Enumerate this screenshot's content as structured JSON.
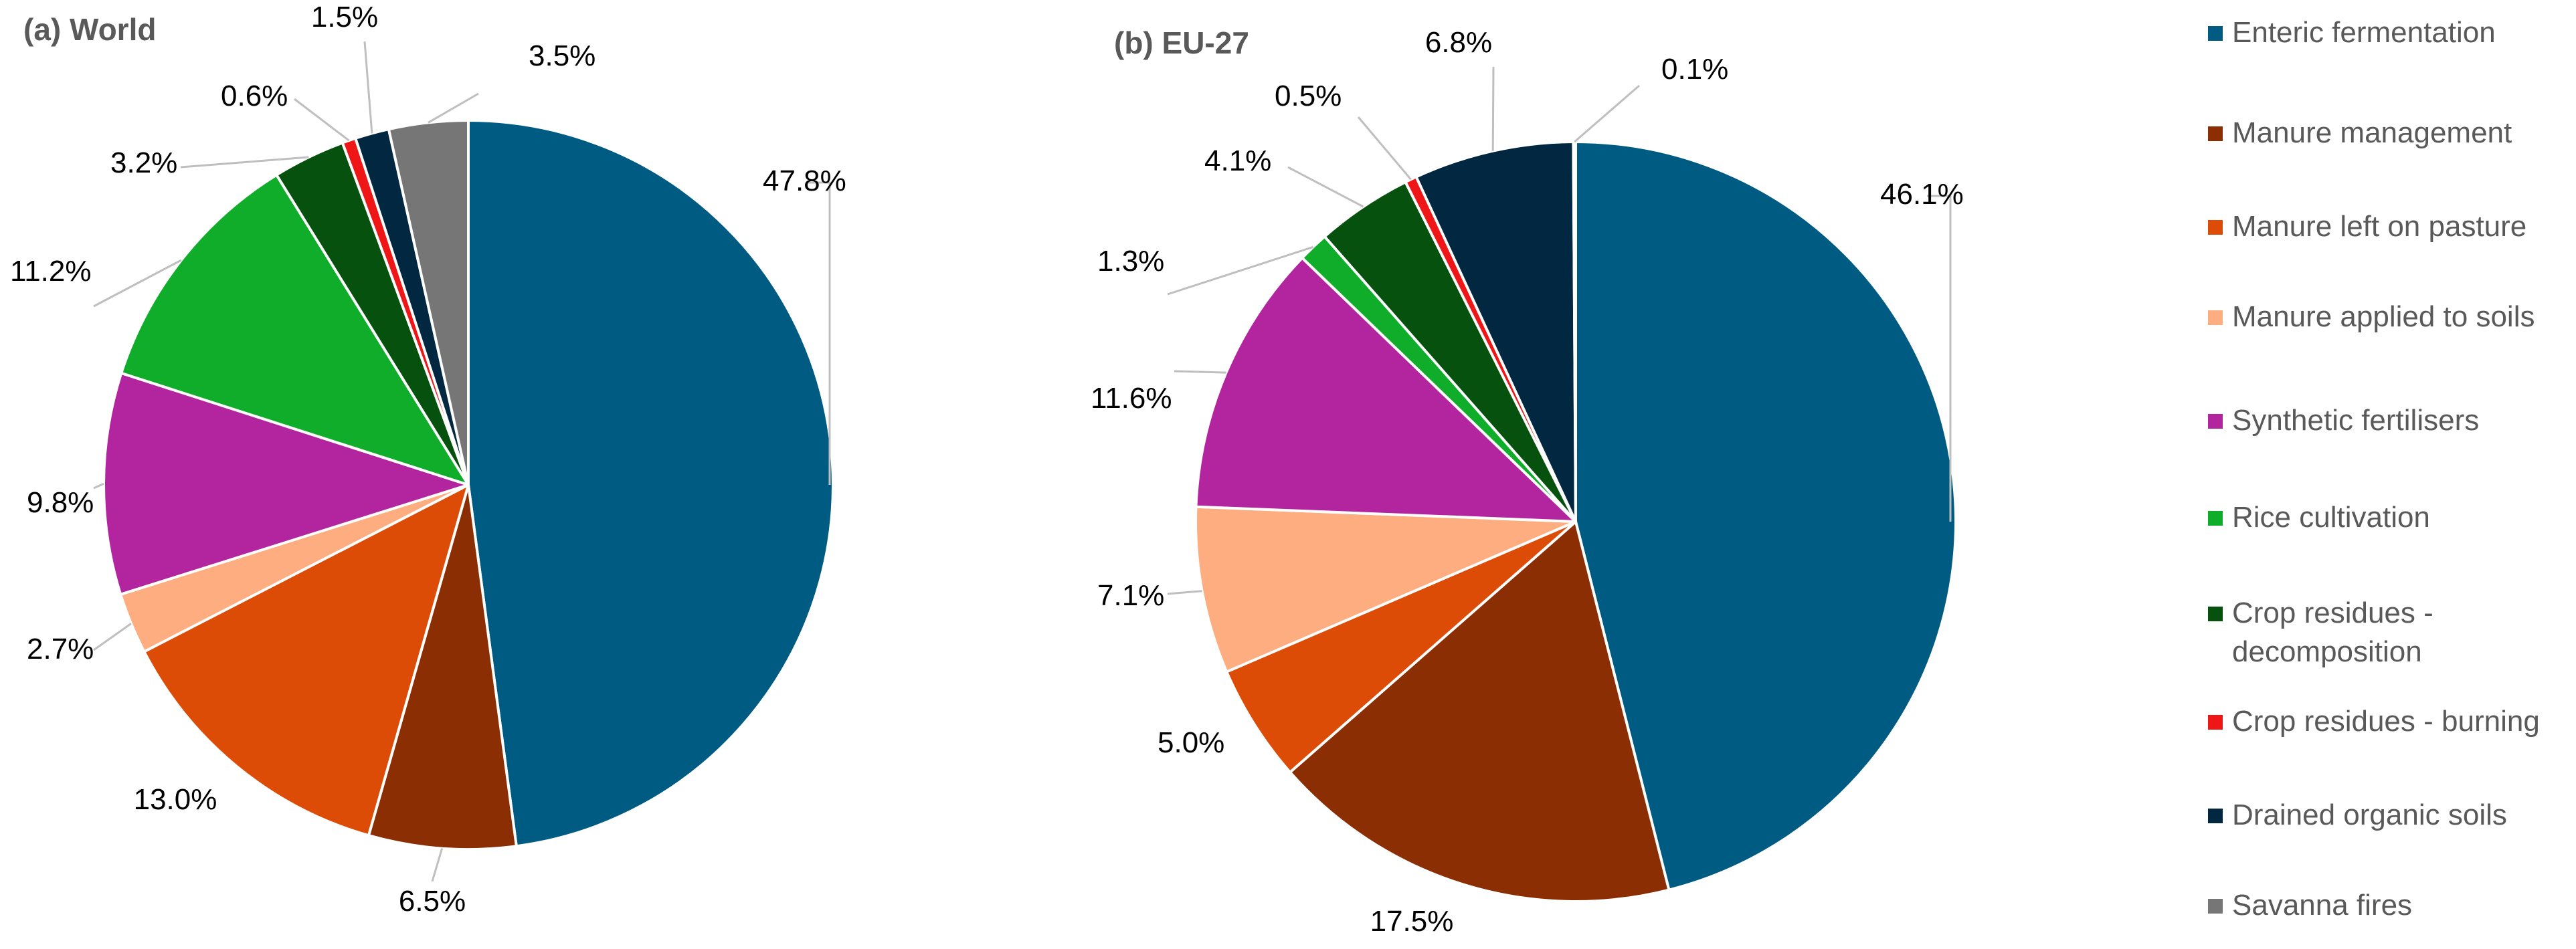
{
  "categories": [
    "Enteric fermentation",
    "Manure management",
    "Manure left on pasture",
    "Manure applied to soils",
    "Synthetic fertilisers",
    "Rice cultivation",
    "Crop residues - decomposition",
    "Crop residues - burning",
    "Drained organic soils",
    "Savanna fires"
  ],
  "colors": [
    "#005b82",
    "#8b2e03",
    "#dd4c06",
    "#fdad7f",
    "#b3259e",
    "#10ad2a",
    "#06510e",
    "#ee1616",
    "#022741",
    "#767676"
  ],
  "legend": {
    "items": [
      {
        "label": "Enteric fermentation",
        "color": "#005b82"
      },
      {
        "label": "Manure management",
        "color": "#8b2e03"
      },
      {
        "label": "Manure left on pasture",
        "color": "#dd4c06"
      },
      {
        "label": "Manure applied to soils",
        "color": "#fdad7f"
      },
      {
        "label": "Synthetic fertilisers",
        "color": "#b3259e"
      },
      {
        "label": "Rice cultivation",
        "color": "#10ad2a"
      },
      {
        "label": "Crop residues - decomposition",
        "color": "#06510e"
      },
      {
        "label": "Crop residues - burning",
        "color": "#ee1616"
      },
      {
        "label": "Drained organic soils",
        "color": "#022741"
      },
      {
        "label": "Savanna fires",
        "color": "#767676"
      }
    ]
  },
  "chart_data": [
    {
      "type": "pie",
      "title": "(a) World",
      "categories": [
        "Enteric fermentation",
        "Manure management",
        "Manure left on pasture",
        "Manure applied to soils",
        "Synthetic fertilisers",
        "Rice cultivation",
        "Crop residues - decomposition",
        "Crop residues - burning",
        "Drained organic soils",
        "Savanna fires"
      ],
      "values": [
        47.8,
        6.5,
        13.0,
        2.7,
        9.8,
        11.2,
        3.2,
        0.6,
        1.5,
        3.5
      ],
      "labels": [
        "47.8%",
        "6.5%",
        "13.0%",
        "2.7%",
        "9.8%",
        "11.2%",
        "3.2%",
        "0.6%",
        "1.5%",
        "3.5%"
      ],
      "start_angle_deg": 0,
      "direction": "clockwise",
      "legend_position": "right"
    },
    {
      "type": "pie",
      "title": "(b) EU-27",
      "categories": [
        "Enteric fermentation",
        "Manure management",
        "Manure left on pasture",
        "Manure applied to soils",
        "Synthetic fertilisers",
        "Rice cultivation",
        "Crop residues - decomposition",
        "Crop residues - burning",
        "Drained organic soils",
        "Savanna fires"
      ],
      "values": [
        46.1,
        17.5,
        5.0,
        7.1,
        11.6,
        1.3,
        4.1,
        0.5,
        6.8,
        0.1
      ],
      "labels": [
        "46.1%",
        "17.5%",
        "5.0%",
        "7.1%",
        "11.6%",
        "1.3%",
        "4.1%",
        "0.5%",
        "6.8%",
        "0.1%"
      ],
      "start_angle_deg": 0,
      "direction": "clockwise",
      "legend_position": "right"
    }
  ]
}
